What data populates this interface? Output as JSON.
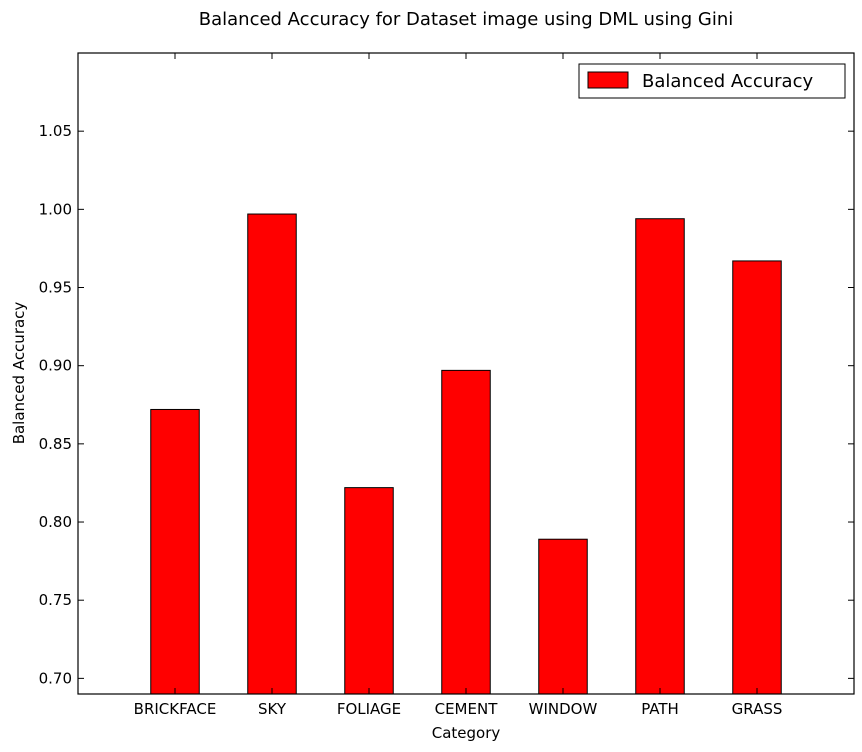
{
  "chart_data": {
    "type": "bar",
    "title": "Balanced Accuracy for Dataset image using DML using Gini",
    "xlabel": "Category",
    "ylabel": "Balanced Accuracy",
    "categories": [
      "BRICKFACE",
      "SKY",
      "FOLIAGE",
      "CEMENT",
      "WINDOW",
      "PATH",
      "GRASS"
    ],
    "series": [
      {
        "name": "Balanced Accuracy",
        "color": "#ff0000",
        "values": [
          0.872,
          0.997,
          0.822,
          0.897,
          0.789,
          0.994,
          0.967
        ]
      }
    ],
    "ylim": [
      0.69,
      1.1
    ],
    "yticks": [
      0.7,
      0.75,
      0.8,
      0.85,
      0.9,
      0.95,
      1.0,
      1.05
    ],
    "ytick_labels": [
      "0.70",
      "0.75",
      "0.80",
      "0.85",
      "0.90",
      "0.95",
      "1.00",
      "1.05"
    ],
    "grid": false,
    "legend_position": "top-right"
  }
}
